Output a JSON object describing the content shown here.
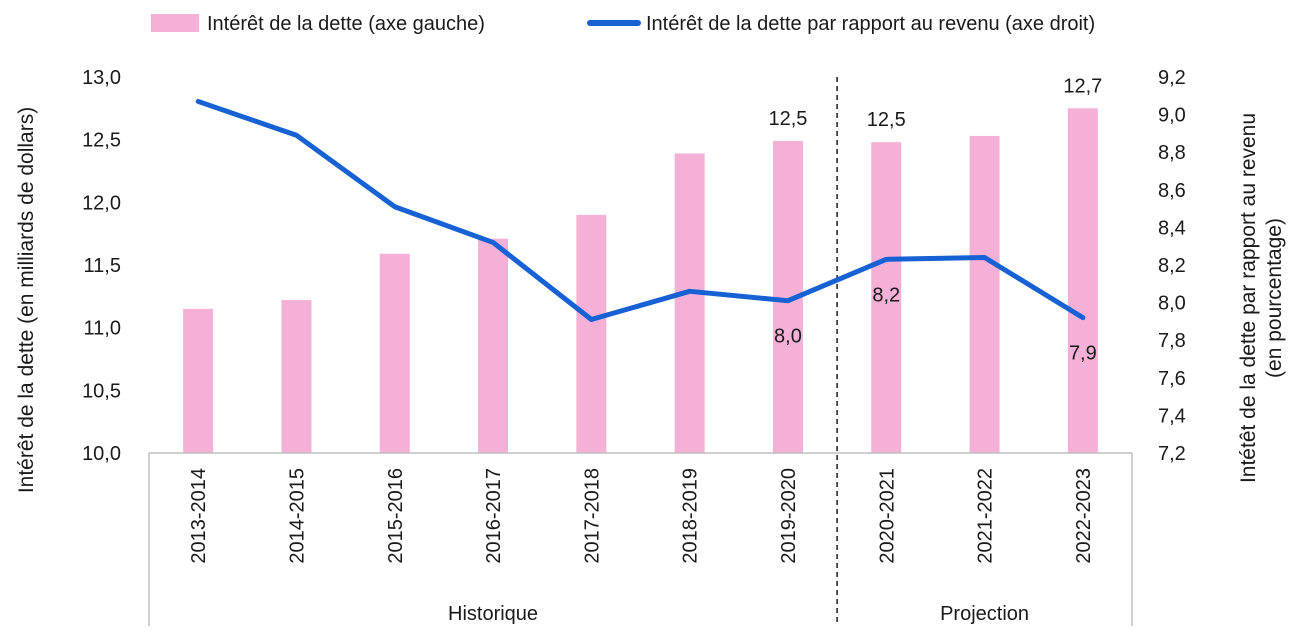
{
  "chart_data": {
    "type": "bar+line",
    "categories": [
      "2013-2014",
      "2014-2015",
      "2015-2016",
      "2016-2017",
      "2017-2018",
      "2018-2019",
      "2019-2020",
      "2020-2021",
      "2021-2022",
      "2022-2023"
    ],
    "groups": [
      {
        "label": "Historique",
        "from": 0,
        "to": 6
      },
      {
        "label": "Projection",
        "from": 7,
        "to": 9
      }
    ],
    "bars": {
      "name": "Intérêt de la dette (axe gauche)",
      "color": "#f4b0d6",
      "values": [
        11.15,
        11.22,
        11.59,
        11.71,
        11.9,
        12.39,
        12.49,
        12.48,
        12.53,
        12.75
      ]
    },
    "line": {
      "name": "Intérêt de la dette par rapport au revenu (axe droit)",
      "color": "#1662d4",
      "values": [
        9.07,
        8.89,
        8.51,
        8.32,
        7.91,
        8.06,
        8.01,
        8.23,
        8.24,
        7.92
      ]
    },
    "bar_labels": [
      {
        "index": 6,
        "text": "12,5"
      },
      {
        "index": 7,
        "text": "12,5"
      },
      {
        "index": 9,
        "text": "12,7"
      }
    ],
    "line_labels": [
      {
        "index": 6,
        "text": "8,0"
      },
      {
        "index": 7,
        "text": "8,2"
      },
      {
        "index": 9,
        "text": "7,9"
      }
    ],
    "y_left": {
      "label": "Intérêt de la dette (en milliards de dollars)",
      "min": 10.0,
      "max": 13.0,
      "step": 0.5,
      "ticks": [
        "10,0",
        "10,5",
        "11,0",
        "11,5",
        "12,0",
        "12,5",
        "13,0"
      ]
    },
    "y_right": {
      "label_line1": "Intétêt de la dette par rapport au revenu",
      "label_line2": "(en pourcentage)",
      "min": 7.2,
      "max": 9.2,
      "step": 0.2,
      "ticks": [
        "7,2",
        "7,4",
        "7,6",
        "7,8",
        "8,0",
        "8,2",
        "8,4",
        "8,6",
        "8,8",
        "9,0",
        "9,2"
      ]
    },
    "divider_after_index": 6,
    "grid": false,
    "legend_position": "top"
  }
}
